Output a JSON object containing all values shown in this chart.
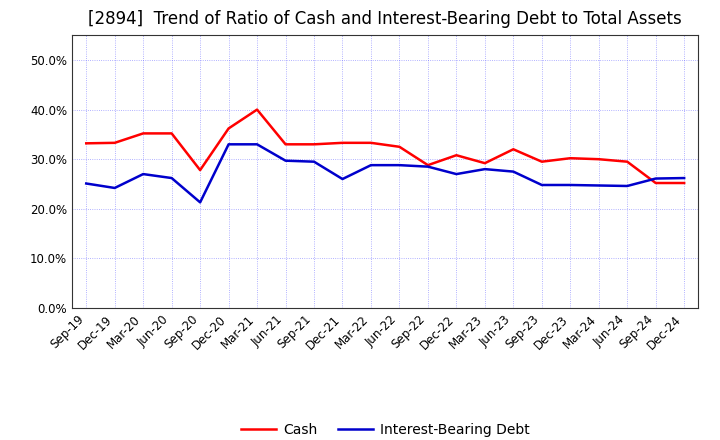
{
  "title": "[2894]  Trend of Ratio of Cash and Interest-Bearing Debt to Total Assets",
  "x_labels": [
    "Sep-19",
    "Dec-19",
    "Mar-20",
    "Jun-20",
    "Sep-20",
    "Dec-20",
    "Mar-21",
    "Jun-21",
    "Sep-21",
    "Dec-21",
    "Mar-22",
    "Jun-22",
    "Sep-22",
    "Dec-22",
    "Mar-23",
    "Jun-23",
    "Sep-23",
    "Dec-23",
    "Mar-24",
    "Jun-24",
    "Sep-24",
    "Dec-24"
  ],
  "cash": [
    0.332,
    0.333,
    0.352,
    0.352,
    0.278,
    0.362,
    0.4,
    0.33,
    0.33,
    0.333,
    0.333,
    0.325,
    0.288,
    0.308,
    0.292,
    0.32,
    0.295,
    0.302,
    0.3,
    0.295,
    0.252,
    0.252
  ],
  "interest_bearing_debt": [
    0.251,
    0.242,
    0.27,
    0.262,
    0.213,
    0.33,
    0.33,
    0.297,
    0.295,
    0.26,
    0.288,
    0.288,
    0.285,
    0.27,
    0.28,
    0.275,
    0.248,
    0.248,
    0.247,
    0.246,
    0.261,
    0.262
  ],
  "cash_color": "#ff0000",
  "debt_color": "#0000cc",
  "background_color": "#ffffff",
  "plot_bg_color": "#ffffff",
  "ylim": [
    0.0,
    0.55
  ],
  "yticks": [
    0.0,
    0.1,
    0.2,
    0.3,
    0.4,
    0.5
  ],
  "grid_color": "#5555ff",
  "legend_cash": "Cash",
  "legend_debt": "Interest-Bearing Debt",
  "title_fontsize": 12,
  "tick_fontsize": 8.5,
  "legend_fontsize": 10,
  "line_width": 1.8
}
